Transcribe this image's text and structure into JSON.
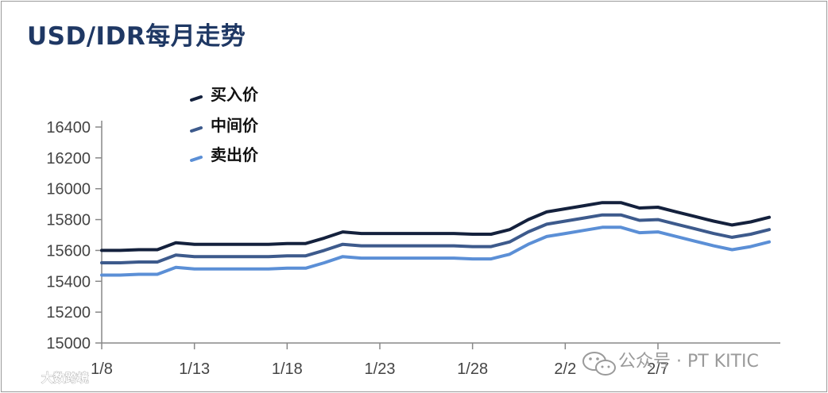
{
  "title": "USD/IDR每月走势",
  "watermark": {
    "text": "公众号 · PT KITIC",
    "icon": "wechat-icon",
    "corner_text": "大数跨境"
  },
  "chart_data": {
    "type": "line",
    "title": "USD/IDR每月走势",
    "xlabel": "",
    "ylabel": "",
    "ylim": [
      15000,
      16400
    ],
    "y_ticks": [
      15000,
      15200,
      15400,
      15600,
      15800,
      16000,
      16200,
      16400
    ],
    "x_tick_labels": [
      "1/8",
      "1/13",
      "1/18",
      "1/23",
      "1/28",
      "2/2",
      "2/7"
    ],
    "x_tick_indices": [
      0,
      5,
      10,
      15,
      20,
      25,
      30
    ],
    "legend_position": "top-left",
    "grid": false,
    "series": [
      {
        "name": "买入价",
        "color": "#14213d",
        "values": [
          15600,
          15600,
          15605,
          15605,
          15650,
          15640,
          15640,
          15640,
          15640,
          15640,
          15645,
          15645,
          15680,
          15720,
          15710,
          15710,
          15710,
          15710,
          15710,
          15710,
          15705,
          15705,
          15735,
          15800,
          15850,
          15870,
          15890,
          15910,
          15910,
          15875,
          15880,
          15850,
          15820,
          15790,
          15765,
          15785,
          15815
        ]
      },
      {
        "name": "中间价",
        "color": "#3d5a8c",
        "values": [
          15520,
          15520,
          15525,
          15525,
          15570,
          15560,
          15560,
          15560,
          15560,
          15560,
          15565,
          15565,
          15600,
          15640,
          15630,
          15630,
          15630,
          15630,
          15630,
          15630,
          15625,
          15625,
          15655,
          15720,
          15770,
          15790,
          15810,
          15830,
          15830,
          15795,
          15800,
          15770,
          15740,
          15710,
          15685,
          15705,
          15735
        ]
      },
      {
        "name": "卖出价",
        "color": "#5b8fd6",
        "values": [
          15440,
          15440,
          15445,
          15445,
          15490,
          15480,
          15480,
          15480,
          15480,
          15480,
          15485,
          15485,
          15520,
          15560,
          15550,
          15550,
          15550,
          15550,
          15550,
          15550,
          15545,
          15545,
          15575,
          15640,
          15690,
          15710,
          15730,
          15750,
          15750,
          15715,
          15720,
          15690,
          15660,
          15630,
          15605,
          15625,
          15655
        ]
      }
    ]
  }
}
